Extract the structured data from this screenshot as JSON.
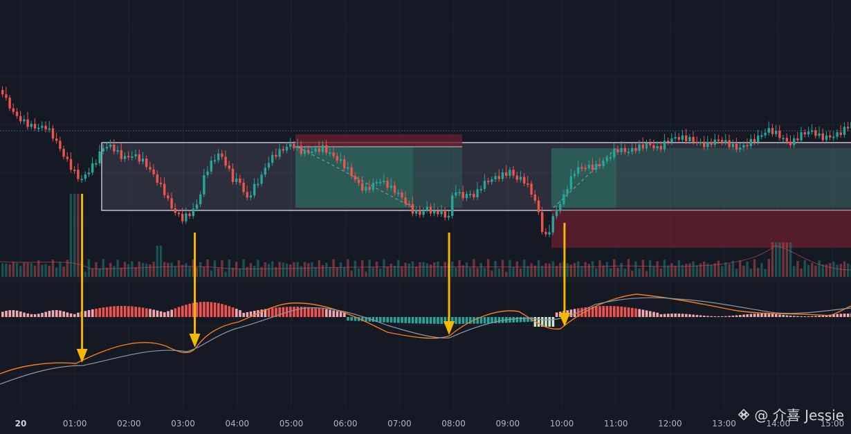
{
  "chart_data": {
    "type": "candlestick",
    "title": "",
    "x_axis": {
      "ticks": [
        "20",
        "01:00",
        "02:00",
        "03:00",
        "04:00",
        "05:00",
        "06:00",
        "07:00",
        "08:00",
        "09:00",
        "10:00",
        "11:00",
        "12:00",
        "13:00",
        "14:00",
        "15:00"
      ]
    },
    "colors": {
      "bg": "#151924",
      "up": "#26a69a",
      "down": "#ef5350",
      "up_dim": "#1f7f7a",
      "down_dim": "#b84d4d",
      "arrow": "#f5b800",
      "macd_line": "#f57c20",
      "signal_line": "#8a9aa8",
      "range_box": "#c0c4cc",
      "zone_green": "#2e7d6b",
      "zone_red": "#6b1f2e"
    },
    "annotations": [
      {
        "type": "range_box",
        "x_from": "01:32",
        "x_to": "15:00+"
      },
      {
        "type": "arrow",
        "at": "01:08",
        "panel": "macd"
      },
      {
        "type": "arrow",
        "at": "03:13",
        "panel": "macd"
      },
      {
        "type": "arrow",
        "at": "07:55",
        "panel": "macd"
      },
      {
        "type": "arrow",
        "at": "10:03",
        "panel": "macd"
      }
    ]
  },
  "watermark": {
    "text": "@ 介喜 Jessie",
    "icon": "binance-logo-icon"
  }
}
